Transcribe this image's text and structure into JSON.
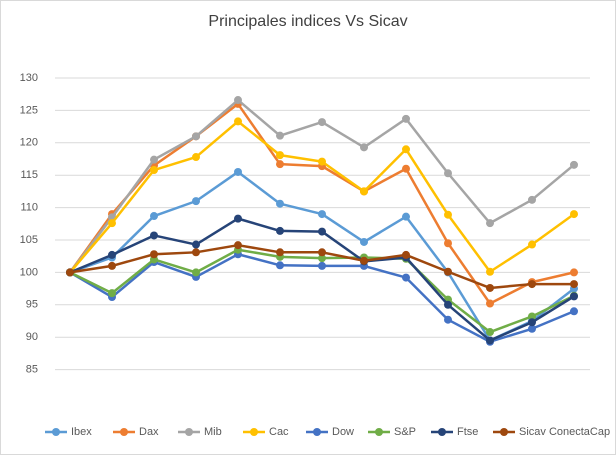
{
  "chart_data": {
    "type": "line",
    "title": "Principales indices Vs Sicav",
    "categories": [
      null,
      null,
      null,
      null,
      null,
      null,
      null,
      null,
      null,
      null,
      null,
      null,
      null
    ],
    "ylim": [
      80,
      130
    ],
    "yticks": [
      85,
      90,
      95,
      100,
      105,
      110,
      115,
      120,
      125,
      130
    ],
    "grid": true,
    "legend": "bottom",
    "series": [
      {
        "name": "Ibex",
        "color": "#5b9bd5",
        "values": [
          100,
          102.3,
          108.7,
          111,
          115.5,
          110.6,
          109,
          104.7,
          108.6,
          100,
          89.5,
          92.5,
          97.5
        ]
      },
      {
        "name": "Dax",
        "color": "#ed7d31",
        "values": [
          100,
          109,
          116.5,
          121,
          126,
          116.7,
          116.4,
          112.5,
          116,
          104.5,
          95.2,
          98.5,
          100
        ]
      },
      {
        "name": "Mib",
        "color": "#a5a5a5",
        "values": [
          100,
          108.5,
          117.4,
          121,
          126.6,
          121.1,
          123.2,
          119.3,
          123.7,
          115.3,
          107.6,
          111.2,
          116.6
        ]
      },
      {
        "name": "Cac",
        "color": "#ffc000",
        "values": [
          100,
          107.6,
          115.8,
          117.8,
          123.3,
          118.1,
          117.1,
          112.5,
          119,
          108.9,
          100.1,
          104.3,
          109
        ]
      },
      {
        "name": "Dow",
        "color": "#4472c4",
        "values": [
          100,
          96.2,
          101.6,
          99.3,
          102.8,
          101.1,
          101,
          101,
          99.2,
          92.7,
          89.3,
          91.3,
          94
        ]
      },
      {
        "name": "S&P",
        "color": "#70ad47",
        "values": [
          100,
          96.8,
          102,
          100,
          103.5,
          102.4,
          102.2,
          102.3,
          102.1,
          95.8,
          90.8,
          93.2,
          96.4
        ]
      },
      {
        "name": "Ftse",
        "color": "#264478",
        "values": [
          100,
          102.7,
          105.7,
          104.3,
          108.3,
          106.4,
          106.3,
          101.7,
          102.3,
          95,
          89.5,
          92.3,
          96.3
        ]
      },
      {
        "name": "Sicav ConectaCap",
        "color": "#9e480e",
        "values": [
          100,
          101,
          102.8,
          103.1,
          104.2,
          103.1,
          103.1,
          101.8,
          102.7,
          100.1,
          97.6,
          98.2,
          98.2
        ]
      }
    ]
  }
}
